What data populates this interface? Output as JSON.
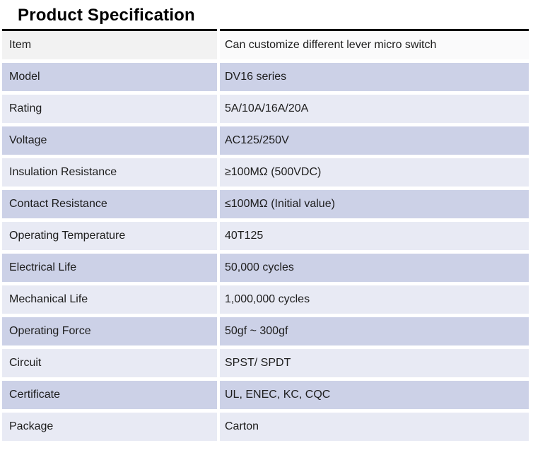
{
  "title": "Product Specification",
  "colors": {
    "header_left_bg": "#f2f2f2",
    "header_right_bg": "#fafafb",
    "row_light_bg": "#e8eaf4",
    "row_medium_bg": "#ccd1e7",
    "top_border": "#000000",
    "text": "#1d1d1d",
    "title_text": "#000000"
  },
  "table": {
    "rows": [
      {
        "label": "Item",
        "value": "Can customize different lever micro switch"
      },
      {
        "label": "Model",
        "value": "DV16 series"
      },
      {
        "label": "Rating",
        "value": "5A/10A/16A/20A"
      },
      {
        "label": "Voltage",
        "value": "AC125/250V"
      },
      {
        "label": "Insulation Resistance",
        "value": "≥100MΩ (500VDC)"
      },
      {
        "label": "Contact Resistance",
        "value": "≤100MΩ (Initial value)"
      },
      {
        "label": "Operating Temperature",
        "value": "40T125"
      },
      {
        "label": "Electrical Life",
        "value": "50,000 cycles"
      },
      {
        "label": "Mechanical Life",
        "value": "1,000,000 cycles"
      },
      {
        "label": "Operating Force",
        "value": "50gf ~ 300gf"
      },
      {
        "label": "Circuit",
        "value": "SPST/ SPDT"
      },
      {
        "label": "Certificate",
        "value": "UL, ENEC, KC, CQC"
      },
      {
        "label": "Package",
        "value": "Carton"
      }
    ]
  }
}
